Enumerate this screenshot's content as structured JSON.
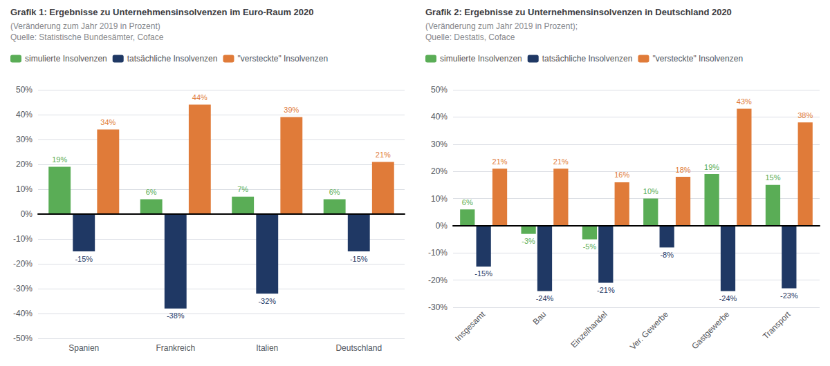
{
  "chart_data": [
    {
      "type": "bar",
      "title": "Grafik 1: Ergebnisse zu Unternehmensinsolvenzen im Euro-Raum 2020",
      "subtitle": [
        "(Veränderung zum Jahr 2019 in Prozent)",
        "Quelle: Statistische Bundesämter, Coface"
      ],
      "categories": [
        "Spanien",
        "Frankreich",
        "Italien",
        "Deutschland"
      ],
      "series": [
        {
          "name": "simulierte Insolvenzen",
          "color": "#5aad56",
          "values": [
            19,
            6,
            7,
            6
          ],
          "value_labels": [
            "19%",
            "6%",
            "7%",
            "6%"
          ]
        },
        {
          "name": "tatsächliche Insolvenzen",
          "color": "#1f3864",
          "values": [
            -15,
            -38,
            -32,
            -15
          ],
          "value_labels": [
            "-15%",
            "-38%",
            "-32%",
            "-15%"
          ]
        },
        {
          "name": "\"versteckte\" Insolvenzen",
          "color": "#e07b39",
          "values": [
            34,
            44,
            39,
            21
          ],
          "value_labels": [
            "34%",
            "44%",
            "39%",
            "21%"
          ]
        }
      ],
      "ylim": [
        -50,
        50
      ],
      "yticks": [
        {
          "value": -50,
          "label": "-50%"
        },
        {
          "value": -40,
          "label": "-40%"
        },
        {
          "value": -30,
          "label": "-30%"
        },
        {
          "value": -20,
          "label": "-20%"
        },
        {
          "value": -10,
          "label": "-10%"
        },
        {
          "value": 0,
          "label": "0%"
        },
        {
          "value": 10,
          "label": "10%"
        },
        {
          "value": 20,
          "label": "20%"
        },
        {
          "value": 30,
          "label": "30%"
        },
        {
          "value": 40,
          "label": "40%"
        },
        {
          "value": 50,
          "label": "50%"
        }
      ],
      "grid": true,
      "legend": "upper left",
      "data_labels": true
    },
    {
      "type": "bar",
      "title": "Grafik 2: Ergebnisse zu Unternehmensinsolvenzen in Deutschland 2020",
      "subtitle": [
        "(Veränderung zum Jahr 2019 in Prozent);",
        "Quelle: Destatis, Coface"
      ],
      "categories": [
        "Insgesamt",
        "Bau",
        "Einzelhandel",
        "Ver. Gewerbe",
        "Gastgewerbe",
        "Transport"
      ],
      "series": [
        {
          "name": "simulierte Insolvenzen",
          "color": "#5aad56",
          "values": [
            6,
            -3,
            -5,
            10,
            19,
            15
          ],
          "value_labels": [
            "6%",
            "-3%",
            "-5%",
            "10%",
            "19%",
            "15%"
          ]
        },
        {
          "name": "tatsächliche Insolvenzen",
          "color": "#1f3864",
          "values": [
            -15,
            -24,
            -21,
            -8,
            -24,
            -23
          ],
          "value_labels": [
            "-15%",
            "-24%",
            "-21%",
            "-8%",
            "-24%",
            "-23%"
          ]
        },
        {
          "name": "\"versteckte\" Insolvenzen",
          "color": "#e07b39",
          "values": [
            21,
            21,
            16,
            18,
            43,
            38
          ],
          "value_labels": [
            "21%",
            "21%",
            "16%",
            "18%",
            "43%",
            "38%"
          ]
        }
      ],
      "ylim": [
        -30,
        50
      ],
      "yticks": [
        {
          "value": -30,
          "label": "-30%"
        },
        {
          "value": -20,
          "label": "-20%"
        },
        {
          "value": -10,
          "label": "-10%"
        },
        {
          "value": 0,
          "label": "0%"
        },
        {
          "value": 10,
          "label": "10%"
        },
        {
          "value": 20,
          "label": "20%"
        },
        {
          "value": 30,
          "label": "30%"
        },
        {
          "value": 40,
          "label": "40%"
        },
        {
          "value": 50,
          "label": "50%"
        }
      ],
      "grid": true,
      "legend": "upper left",
      "data_labels": true
    }
  ]
}
